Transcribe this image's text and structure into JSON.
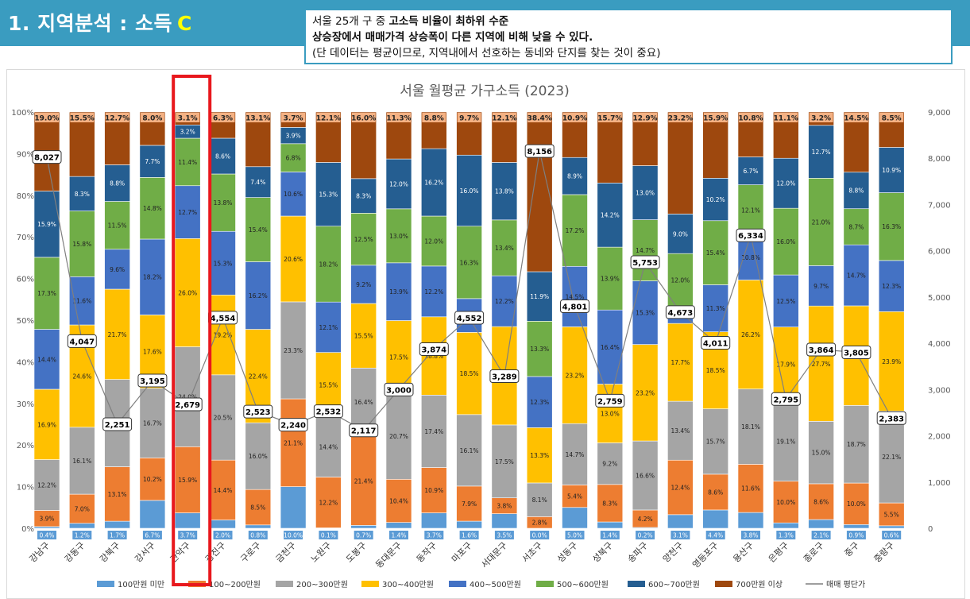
{
  "header": {
    "title": "1. 지역분석 : 소득",
    "grade": "C"
  },
  "note": {
    "line1_a": "서울 25개 구 중 ",
    "line1_b": "고소득 비율이 최하위 수준",
    "line2": "상승장에서 매매가격 상승폭이 다른 지역에 비해 낮을 수 있다.",
    "line3": "(단 데이터는 평균이므로, 지역내에서 선호하는 동네와 단지를 찾는 것이 중요)"
  },
  "colors": {
    "banner": "#3a9cc0",
    "highlight_box": "#e8181d",
    "series": [
      "#5b9bd5",
      "#ed7d31",
      "#a5a5a5",
      "#ffc000",
      "#4472c4",
      "#70ad47",
      "#255e91",
      "#9e480e"
    ],
    "price_line": "#7f7f7f"
  },
  "chart_data": {
    "type": "bar",
    "stacked": true,
    "title": "서울 월평균 가구소득 (2023)",
    "categories": [
      "강남구",
      "강동구",
      "강북구",
      "강서구",
      "관악구",
      "광진구",
      "구로구",
      "금천구",
      "노원구",
      "도봉구",
      "동대문구",
      "동작구",
      "마포구",
      "서대문구",
      "서초구",
      "성동구",
      "성북구",
      "송파구",
      "양천구",
      "영등포구",
      "용산구",
      "은평구",
      "종로구",
      "중구",
      "중랑구"
    ],
    "highlight_category": "관악구",
    "left_axis": {
      "min": 0,
      "max": 100,
      "step": 10,
      "unit": "%",
      "ticks": [
        "0%",
        "10%",
        "20%",
        "30%",
        "40%",
        "50%",
        "60%",
        "70%",
        "80%",
        "90%",
        "100%"
      ]
    },
    "right_axis": {
      "min": 0,
      "max": 9000,
      "step": 1000,
      "ticks": [
        "0",
        "1,000",
        "2,000",
        "3,000",
        "4,000",
        "5,000",
        "6,000",
        "7,000",
        "8,000",
        "9,000"
      ]
    },
    "series": [
      {
        "name": "100만원 미만",
        "values": [
          0.4,
          1.2,
          1.7,
          6.7,
          3.7,
          2.0,
          0.8,
          10.0,
          0.1,
          0.7,
          1.4,
          3.7,
          1.6,
          3.5,
          0.0,
          5.0,
          1.4,
          0.2,
          3.1,
          4.4,
          3.8,
          1.3,
          2.1,
          0.9,
          0.6
        ]
      },
      {
        "name": "100~200만원",
        "values": [
          3.9,
          7.0,
          13.1,
          10.2,
          15.9,
          14.4,
          8.5,
          21.1,
          12.2,
          21.4,
          10.4,
          10.9,
          7.9,
          3.8,
          2.8,
          5.4,
          8.3,
          4.2,
          12.4,
          8.6,
          11.6,
          10.0,
          8.6,
          10.0,
          5.5
        ]
      },
      {
        "name": "200~300만원",
        "values": [
          12.2,
          16.1,
          21.0,
          16.7,
          24.0,
          20.5,
          16.0,
          23.3,
          14.4,
          16.4,
          20.7,
          17.4,
          16.1,
          17.5,
          8.1,
          14.7,
          9.2,
          16.6,
          13.4,
          15.7,
          18.1,
          19.1,
          15.0,
          18.7,
          22.1
        ]
      },
      {
        "name": "300~400만원",
        "values": [
          16.9,
          24.6,
          21.7,
          17.6,
          26.0,
          19.2,
          22.4,
          20.6,
          15.5,
          15.5,
          17.5,
          18.8,
          18.5,
          23.6,
          13.3,
          23.2,
          13.0,
          23.2,
          17.7,
          18.5,
          26.2,
          17.9,
          27.7,
          24.0,
          23.9
        ]
      },
      {
        "name": "400~500만원",
        "values": [
          14.4,
          11.6,
          9.6,
          18.2,
          12.7,
          15.3,
          16.2,
          10.6,
          12.1,
          9.2,
          13.9,
          12.2,
          7.6,
          12.2,
          12.3,
          14.5,
          16.4,
          15.3,
          3.9,
          11.3,
          10.8,
          12.5,
          9.7,
          14.7,
          12.3
        ]
      },
      {
        "name": "500~600만원",
        "values": [
          17.3,
          15.8,
          11.5,
          14.8,
          11.4,
          13.8,
          15.4,
          6.8,
          18.2,
          12.5,
          13.0,
          12.0,
          16.3,
          13.4,
          13.3,
          17.2,
          13.9,
          14.7,
          12.0,
          15.4,
          12.1,
          16.0,
          21.0,
          8.7,
          16.3
        ]
      },
      {
        "name": "600~700만원",
        "values": [
          15.9,
          8.3,
          8.8,
          7.7,
          3.2,
          8.6,
          7.4,
          3.9,
          15.3,
          8.3,
          12.0,
          16.2,
          16.0,
          13.8,
          11.9,
          8.9,
          14.2,
          13.0,
          9.0,
          10.2,
          6.7,
          12.0,
          12.7,
          8.8,
          10.9
        ]
      },
      {
        "name": "700만원 이상",
        "values": [
          19.0,
          15.5,
          12.7,
          8.0,
          3.1,
          6.3,
          13.1,
          3.7,
          12.1,
          16.0,
          11.3,
          8.8,
          9.7,
          12.1,
          38.4,
          10.9,
          15.7,
          12.9,
          23.2,
          15.9,
          10.8,
          11.1,
          3.2,
          14.5,
          8.5
        ]
      }
    ],
    "line_series": {
      "name": "매매 평단가",
      "values": [
        8027,
        4047,
        2251,
        3195,
        2679,
        4554,
        2523,
        2240,
        2532,
        2117,
        3000,
        3874,
        4552,
        3289,
        8156,
        4801,
        2759,
        5753,
        4673,
        4011,
        6334,
        2795,
        3864,
        3805,
        2383
      ]
    },
    "line_labels": [
      "8,027",
      "4,047",
      "2,251",
      "3,195",
      "2,679",
      "4,554",
      "2,523",
      "2,240",
      "2,532",
      "2,117",
      "3,000",
      "3,874",
      "4,552",
      "3,289",
      "8,156",
      "4,801",
      "2,759",
      "5,753",
      "4,673",
      "4,011",
      "6,334",
      "2,795",
      "3,864",
      "3,805",
      "2,383"
    ],
    "legend_position": "bottom",
    "grid": false
  }
}
